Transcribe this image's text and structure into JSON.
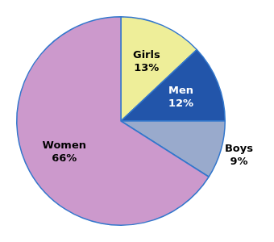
{
  "chart_data": {
    "type": "pie",
    "categories": [
      "Girls",
      "Men",
      "Boys",
      "Women"
    ],
    "values": [
      13,
      12,
      9,
      66
    ],
    "value_labels": [
      "13%",
      "12%",
      "9%",
      "66%"
    ],
    "colors": [
      "#eeee99",
      "#2255aa",
      "#99aacc",
      "#cc99cc"
    ],
    "data_labels": true
  }
}
